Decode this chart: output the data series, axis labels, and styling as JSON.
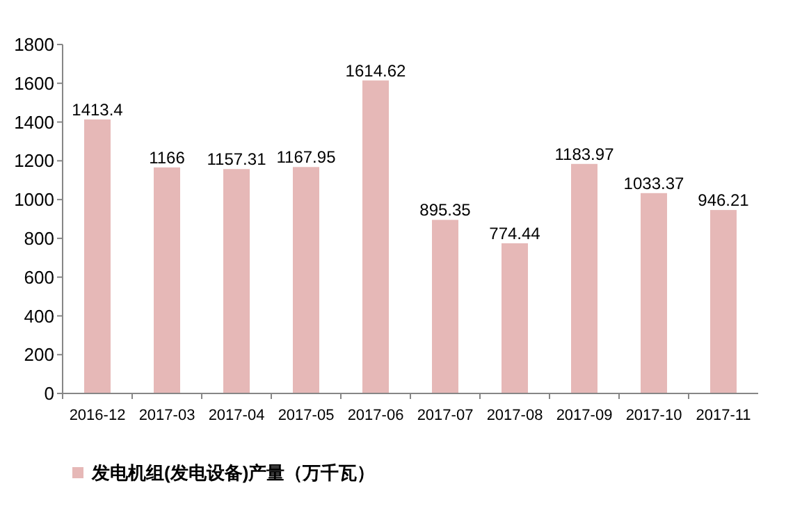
{
  "chart_data": {
    "type": "bar",
    "categories": [
      "2016-12",
      "2017-03",
      "2017-04",
      "2017-05",
      "2017-06",
      "2017-07",
      "2017-08",
      "2017-09",
      "2017-10",
      "2017-11"
    ],
    "series": [
      {
        "name": "发电机组(发电设备)产量（万千瓦）",
        "color": "#e6b8b7",
        "values": [
          1413.4,
          1166,
          1157.31,
          1167.95,
          1614.62,
          895.35,
          774.44,
          1183.97,
          1033.37,
          946.21
        ]
      }
    ],
    "ylim": [
      0,
      1800
    ],
    "yticks": [
      0,
      200,
      400,
      600,
      800,
      1000,
      1200,
      1400,
      1600,
      1800
    ],
    "grid": false,
    "data_labels": true,
    "legend": "bottom left"
  }
}
